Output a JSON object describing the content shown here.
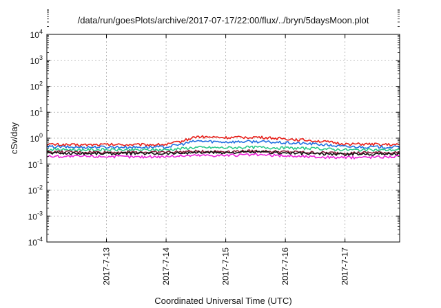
{
  "chart_data": {
    "type": "line",
    "title": "/data/run/goesPlots/archive/2017-07-17/22:00/flux/../bryn/5daysMoon.plot",
    "xlabel": "Coordinated Universal Time (UTC)",
    "ylabel": "cSv/day",
    "yscale": "log",
    "ylim": [
      0.0001,
      10000
    ],
    "xlim_days": [
      "2017-07-12",
      "2017-07-17"
    ],
    "x_ticks": [
      "2017-7-13",
      "2017-7-14",
      "2017-7-15",
      "2017-7-16",
      "2017-7-17"
    ],
    "y_ticks": [
      {
        "base": "10",
        "exp": "-4"
      },
      {
        "base": "10",
        "exp": "-3"
      },
      {
        "base": "10",
        "exp": "-2"
      },
      {
        "base": "10",
        "exp": "-1"
      },
      {
        "base": "10",
        "exp": "0"
      },
      {
        "base": "10",
        "exp": "1"
      },
      {
        "base": "10",
        "exp": "2"
      },
      {
        "base": "10",
        "exp": "3"
      },
      {
        "base": "10",
        "exp": "4"
      }
    ],
    "grid": true,
    "x": [
      "2017-07-12 00:00",
      "2017-07-12 12:00",
      "2017-07-13 00:00",
      "2017-07-13 12:00",
      "2017-07-14 00:00",
      "2017-07-14 06:00",
      "2017-07-14 12:00",
      "2017-07-15 00:00",
      "2017-07-15 12:00",
      "2017-07-16 00:00",
      "2017-07-16 12:00",
      "2017-07-17 00:00",
      "2017-07-17 12:00",
      "2017-07-17 22:00"
    ],
    "series": [
      {
        "color": "#e8201a",
        "values": [
          0.58,
          0.55,
          0.57,
          0.56,
          0.57,
          0.75,
          1.15,
          1.05,
          1.1,
          0.95,
          0.8,
          0.6,
          0.58,
          0.55
        ]
      },
      {
        "color": "#1f6fe0",
        "values": [
          0.47,
          0.45,
          0.46,
          0.45,
          0.46,
          0.58,
          0.78,
          0.72,
          0.75,
          0.66,
          0.6,
          0.47,
          0.46,
          0.45
        ]
      },
      {
        "color": "#2ec98a",
        "values": [
          0.37,
          0.36,
          0.36,
          0.35,
          0.36,
          0.4,
          0.44,
          0.43,
          0.45,
          0.42,
          0.4,
          0.36,
          0.35,
          0.36
        ]
      },
      {
        "color": "#8a1a3a",
        "values": [
          0.3,
          0.29,
          0.29,
          0.29,
          0.29,
          0.3,
          0.31,
          0.31,
          0.32,
          0.3,
          0.28,
          0.27,
          0.28,
          0.28
        ]
      },
      {
        "color": "#111111",
        "values": [
          0.27,
          0.26,
          0.26,
          0.26,
          0.26,
          0.27,
          0.28,
          0.28,
          0.29,
          0.27,
          0.25,
          0.24,
          0.25,
          0.25
        ]
      },
      {
        "color": "#ee22d8",
        "values": [
          0.2,
          0.2,
          0.2,
          0.19,
          0.2,
          0.21,
          0.22,
          0.22,
          0.23,
          0.21,
          0.19,
          0.18,
          0.19,
          0.2
        ]
      }
    ]
  }
}
